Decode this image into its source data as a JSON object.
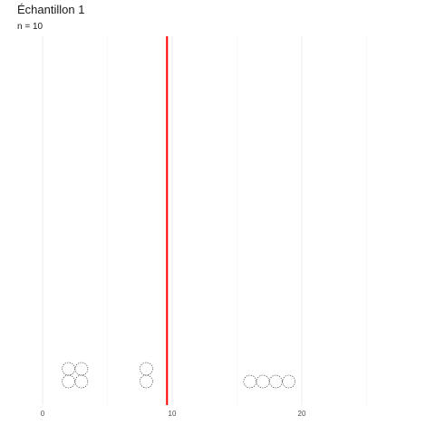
{
  "chart_data": {
    "type": "dotplot",
    "title": "Échantillon 1",
    "subtitle": "n = 10",
    "xlabel": "",
    "ylabel": "",
    "xlim": [
      0,
      25
    ],
    "x_ticks": [
      0,
      10,
      20
    ],
    "x_tick_labels": [
      "0",
      "10",
      "20"
    ],
    "grid": true,
    "values": [
      2,
      2,
      3,
      3,
      8,
      8,
      16,
      17,
      18,
      19
    ],
    "reference_line": {
      "x": 9.6,
      "color": "#ff0000"
    }
  }
}
